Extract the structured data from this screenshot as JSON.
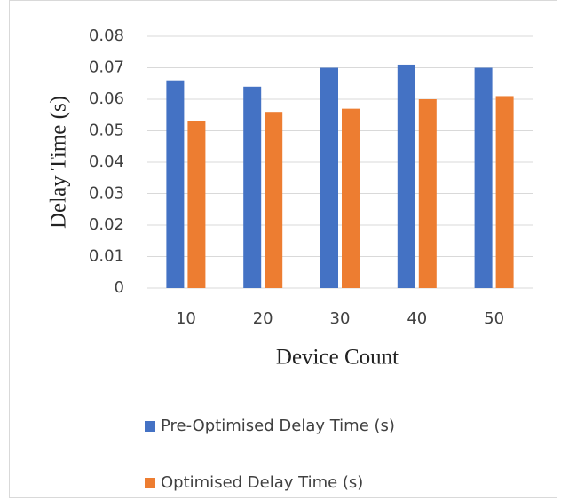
{
  "chart_data": {
    "type": "bar",
    "xlabel": "Device Count",
    "ylabel": "Delay Time (s)",
    "categories": [
      "10",
      "20",
      "30",
      "40",
      "50"
    ],
    "series": [
      {
        "name": "Pre-Optimised Delay Time (s)",
        "color": "#4472c4",
        "values": [
          0.066,
          0.064,
          0.07,
          0.071,
          0.07
        ]
      },
      {
        "name": "Optimised Delay Time (s)",
        "color": "#ed7d31",
        "values": [
          0.053,
          0.056,
          0.057,
          0.06,
          0.061
        ]
      }
    ],
    "ylim": [
      0,
      0.08
    ],
    "yticks": [
      0,
      0.01,
      0.02,
      0.03,
      0.04,
      0.05,
      0.06,
      0.07,
      0.08
    ],
    "grid": true,
    "legend": "bottom"
  }
}
